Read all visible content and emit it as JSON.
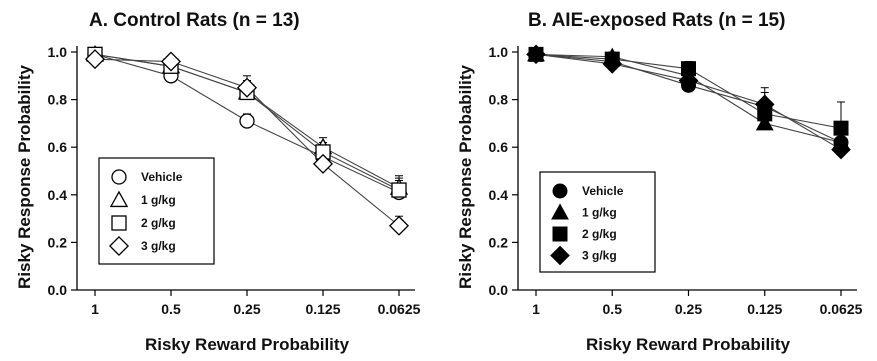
{
  "chart_data": [
    {
      "type": "line",
      "title": "A. Control Rats (n = 13)",
      "xlabel": "Risky Reward Probability",
      "ylabel": "Risky Response Probability",
      "categories": [
        "1",
        "0.5",
        "0.25",
        "0.125",
        "0.0625"
      ],
      "y_ticks": [
        "0.0",
        "0.2",
        "0.4",
        "0.6",
        "0.8",
        "1.0"
      ],
      "ylim": [
        0,
        1.0
      ],
      "marker_fill": "open",
      "legend_position": "bottom-left",
      "series": [
        {
          "name": "Vehicle",
          "marker": "circle",
          "values": [
            0.99,
            0.9,
            0.71,
            0.56,
            0.41
          ],
          "errors": [
            0.02,
            0.02,
            0.03,
            0.04,
            0.05
          ]
        },
        {
          "name": "1 g/kg",
          "marker": "triangle",
          "values": [
            0.99,
            0.94,
            0.83,
            0.6,
            0.43
          ],
          "errors": [
            0.02,
            0.02,
            0.05,
            0.04,
            0.05
          ]
        },
        {
          "name": "2 g/kg",
          "marker": "square",
          "values": [
            0.99,
            0.94,
            0.83,
            0.58,
            0.42
          ],
          "errors": [
            0.02,
            0.02,
            0.05,
            0.04,
            0.05
          ]
        },
        {
          "name": "3 g/kg",
          "marker": "diamond",
          "values": [
            0.97,
            0.96,
            0.85,
            0.53,
            0.27
          ],
          "errors": [
            0.02,
            0.02,
            0.05,
            0.04,
            0.04
          ]
        }
      ]
    },
    {
      "type": "line",
      "title": "B. AIE-exposed Rats (n = 15)",
      "xlabel": "Risky Reward Probability",
      "ylabel": "Risky Response Probability",
      "categories": [
        "1",
        "0.5",
        "0.25",
        "0.125",
        "0.0625"
      ],
      "y_ticks": [
        "0.0",
        "0.2",
        "0.4",
        "0.6",
        "0.8",
        "1.0"
      ],
      "ylim": [
        0,
        1.0
      ],
      "marker_fill": "filled",
      "legend_position": "bottom-left",
      "series": [
        {
          "name": "Vehicle",
          "marker": "circle",
          "values": [
            0.99,
            0.96,
            0.86,
            0.77,
            0.62
          ],
          "errors": [
            0.02,
            0.02,
            0.03,
            0.08,
            0.05
          ]
        },
        {
          "name": "1 g/kg",
          "marker": "triangle",
          "values": [
            0.99,
            0.98,
            0.9,
            0.7,
            0.62
          ],
          "errors": [
            0.02,
            0.02,
            0.03,
            0.05,
            0.05
          ]
        },
        {
          "name": "2 g/kg",
          "marker": "square",
          "values": [
            0.99,
            0.97,
            0.93,
            0.74,
            0.68
          ],
          "errors": [
            0.02,
            0.02,
            0.03,
            0.05,
            0.11
          ]
        },
        {
          "name": "3 g/kg",
          "marker": "diamond",
          "values": [
            0.99,
            0.95,
            0.88,
            0.78,
            0.59
          ],
          "errors": [
            0.02,
            0.02,
            0.03,
            0.05,
            0.05
          ]
        }
      ]
    }
  ]
}
